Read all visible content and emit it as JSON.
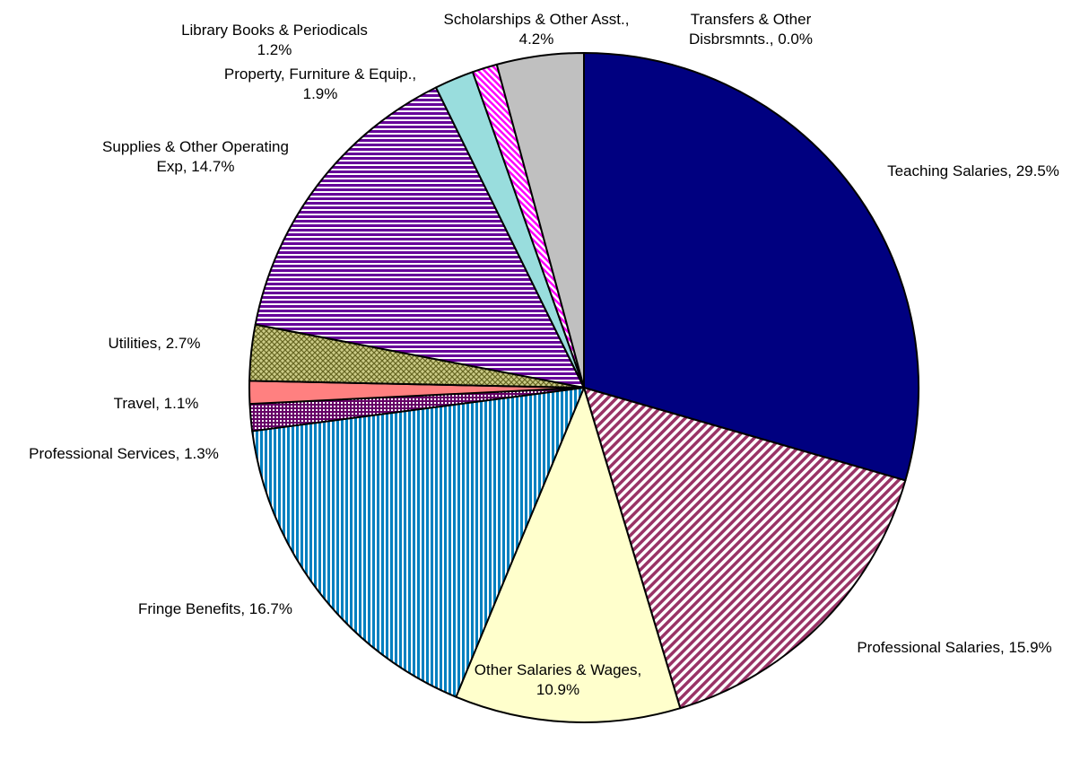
{
  "chart_data": {
    "type": "pie",
    "title": "",
    "start_angle_deg": 0,
    "direction": "clockwise",
    "slices": [
      {
        "label_lines": [
          "Teaching Salaries, 29.5%"
        ],
        "value": 29.5,
        "color": "#000080",
        "pattern": "solid"
      },
      {
        "label_lines": [
          "Professional Salaries, 15.9%"
        ],
        "value": 15.9,
        "color": "#993366",
        "pattern": "diagonal-stripes"
      },
      {
        "label_lines": [
          "Other Salaries & Wages,",
          "10.9%"
        ],
        "value": 10.9,
        "color": "#FFFFCC",
        "pattern": "solid"
      },
      {
        "label_lines": [
          "Fringe Benefits, 16.7%"
        ],
        "value": 16.7,
        "color": "#0080C0",
        "pattern": "vertical-stripes"
      },
      {
        "label_lines": [
          "Professional Services, 1.3%"
        ],
        "value": 1.3,
        "color": "#660066",
        "pattern": "checker"
      },
      {
        "label_lines": [
          "Travel, 1.1%"
        ],
        "value": 1.1,
        "color": "#FF8080",
        "pattern": "solid"
      },
      {
        "label_lines": [
          "Utilities, 2.7%"
        ],
        "value": 2.7,
        "color": "#999933",
        "pattern": "crosshatch"
      },
      {
        "label_lines": [
          "Supplies & Other Operating",
          "Exp, 14.7%"
        ],
        "value": 14.7,
        "color": "#660099",
        "pattern": "horizontal-stripes"
      },
      {
        "label_lines": [
          "Property, Furniture & Equip.,",
          "1.9%"
        ],
        "value": 1.9,
        "color": "#99DDDD",
        "pattern": "solid"
      },
      {
        "label_lines": [
          "Library Books & Periodicals",
          "1.2%"
        ],
        "value": 1.2,
        "color": "#FF00FF",
        "pattern": "diagonal-stripes-thin"
      },
      {
        "label_lines": [
          "Scholarships & Other Asst.,",
          "4.2%"
        ],
        "value": 4.2,
        "color": "#C0C0C0",
        "pattern": "solid"
      },
      {
        "label_lines": [
          "Transfers & Other",
          "Disbrsmnts., 0.0%"
        ],
        "value": 0.0,
        "color": "#FFFFFF",
        "pattern": "solid"
      }
    ]
  }
}
